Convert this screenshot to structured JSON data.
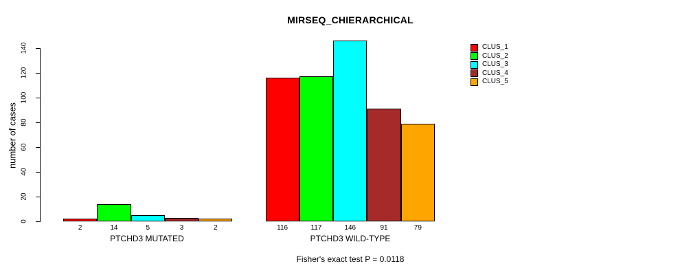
{
  "title": "MIRSEQ_CHIERARCHICAL",
  "footer": "Fisher's exact test P = 0.0118",
  "colors": {
    "background": "#FFFFFF",
    "axis": "#000000",
    "bar_border": "#000000"
  },
  "chart_data": {
    "type": "bar",
    "title": "MIRSEQ_CHIERARCHICAL",
    "xlabel": "",
    "ylabel": "number of cases",
    "ylim": [
      0,
      140
    ],
    "yticks": [
      0,
      20,
      40,
      60,
      80,
      100,
      120,
      140
    ],
    "grid": false,
    "legend_position": "right",
    "bar_value_labels": true,
    "categories": [
      "PTCHD3 MUTATED",
      "PTCHD3 WILD-TYPE"
    ],
    "series": [
      {
        "name": "CLUS_1",
        "color": "#FF0000",
        "values": [
          2,
          116
        ]
      },
      {
        "name": "CLUS_2",
        "color": "#00FF00",
        "values": [
          14,
          117
        ]
      },
      {
        "name": "CLUS_3",
        "color": "#00FFFF",
        "values": [
          5,
          146
        ]
      },
      {
        "name": "CLUS_4",
        "color": "#A52A2A",
        "values": [
          3,
          91
        ]
      },
      {
        "name": "CLUS_5",
        "color": "#FFA500",
        "values": [
          2,
          79
        ]
      }
    ],
    "annotation": "Fisher's exact test P = 0.0118"
  }
}
